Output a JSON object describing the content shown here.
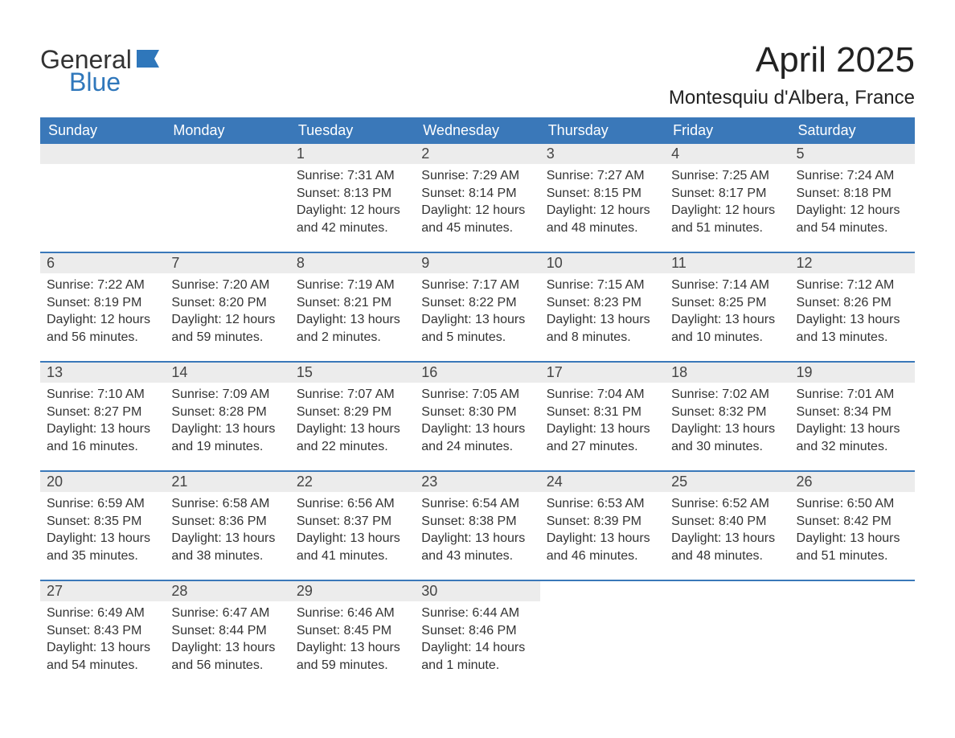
{
  "logo": {
    "text1": "General",
    "text2": "Blue"
  },
  "title": "April 2025",
  "location": "Montesquiu d'Albera, France",
  "colors": {
    "header_bg": "#3a78b9",
    "header_text": "#ffffff",
    "daynum_bg": "#ececec",
    "border_top": "#3a78b9",
    "body_text": "#333333",
    "logo_blue": "#2f77bb"
  },
  "day_headers": [
    "Sunday",
    "Monday",
    "Tuesday",
    "Wednesday",
    "Thursday",
    "Friday",
    "Saturday"
  ],
  "weeks": [
    [
      null,
      null,
      {
        "n": "1",
        "sunrise": "Sunrise: 7:31 AM",
        "sunset": "Sunset: 8:13 PM",
        "daylight1": "Daylight: 12 hours",
        "daylight2": "and 42 minutes."
      },
      {
        "n": "2",
        "sunrise": "Sunrise: 7:29 AM",
        "sunset": "Sunset: 8:14 PM",
        "daylight1": "Daylight: 12 hours",
        "daylight2": "and 45 minutes."
      },
      {
        "n": "3",
        "sunrise": "Sunrise: 7:27 AM",
        "sunset": "Sunset: 8:15 PM",
        "daylight1": "Daylight: 12 hours",
        "daylight2": "and 48 minutes."
      },
      {
        "n": "4",
        "sunrise": "Sunrise: 7:25 AM",
        "sunset": "Sunset: 8:17 PM",
        "daylight1": "Daylight: 12 hours",
        "daylight2": "and 51 minutes."
      },
      {
        "n": "5",
        "sunrise": "Sunrise: 7:24 AM",
        "sunset": "Sunset: 8:18 PM",
        "daylight1": "Daylight: 12 hours",
        "daylight2": "and 54 minutes."
      }
    ],
    [
      {
        "n": "6",
        "sunrise": "Sunrise: 7:22 AM",
        "sunset": "Sunset: 8:19 PM",
        "daylight1": "Daylight: 12 hours",
        "daylight2": "and 56 minutes."
      },
      {
        "n": "7",
        "sunrise": "Sunrise: 7:20 AM",
        "sunset": "Sunset: 8:20 PM",
        "daylight1": "Daylight: 12 hours",
        "daylight2": "and 59 minutes."
      },
      {
        "n": "8",
        "sunrise": "Sunrise: 7:19 AM",
        "sunset": "Sunset: 8:21 PM",
        "daylight1": "Daylight: 13 hours",
        "daylight2": "and 2 minutes."
      },
      {
        "n": "9",
        "sunrise": "Sunrise: 7:17 AM",
        "sunset": "Sunset: 8:22 PM",
        "daylight1": "Daylight: 13 hours",
        "daylight2": "and 5 minutes."
      },
      {
        "n": "10",
        "sunrise": "Sunrise: 7:15 AM",
        "sunset": "Sunset: 8:23 PM",
        "daylight1": "Daylight: 13 hours",
        "daylight2": "and 8 minutes."
      },
      {
        "n": "11",
        "sunrise": "Sunrise: 7:14 AM",
        "sunset": "Sunset: 8:25 PM",
        "daylight1": "Daylight: 13 hours",
        "daylight2": "and 10 minutes."
      },
      {
        "n": "12",
        "sunrise": "Sunrise: 7:12 AM",
        "sunset": "Sunset: 8:26 PM",
        "daylight1": "Daylight: 13 hours",
        "daylight2": "and 13 minutes."
      }
    ],
    [
      {
        "n": "13",
        "sunrise": "Sunrise: 7:10 AM",
        "sunset": "Sunset: 8:27 PM",
        "daylight1": "Daylight: 13 hours",
        "daylight2": "and 16 minutes."
      },
      {
        "n": "14",
        "sunrise": "Sunrise: 7:09 AM",
        "sunset": "Sunset: 8:28 PM",
        "daylight1": "Daylight: 13 hours",
        "daylight2": "and 19 minutes."
      },
      {
        "n": "15",
        "sunrise": "Sunrise: 7:07 AM",
        "sunset": "Sunset: 8:29 PM",
        "daylight1": "Daylight: 13 hours",
        "daylight2": "and 22 minutes."
      },
      {
        "n": "16",
        "sunrise": "Sunrise: 7:05 AM",
        "sunset": "Sunset: 8:30 PM",
        "daylight1": "Daylight: 13 hours",
        "daylight2": "and 24 minutes."
      },
      {
        "n": "17",
        "sunrise": "Sunrise: 7:04 AM",
        "sunset": "Sunset: 8:31 PM",
        "daylight1": "Daylight: 13 hours",
        "daylight2": "and 27 minutes."
      },
      {
        "n": "18",
        "sunrise": "Sunrise: 7:02 AM",
        "sunset": "Sunset: 8:32 PM",
        "daylight1": "Daylight: 13 hours",
        "daylight2": "and 30 minutes."
      },
      {
        "n": "19",
        "sunrise": "Sunrise: 7:01 AM",
        "sunset": "Sunset: 8:34 PM",
        "daylight1": "Daylight: 13 hours",
        "daylight2": "and 32 minutes."
      }
    ],
    [
      {
        "n": "20",
        "sunrise": "Sunrise: 6:59 AM",
        "sunset": "Sunset: 8:35 PM",
        "daylight1": "Daylight: 13 hours",
        "daylight2": "and 35 minutes."
      },
      {
        "n": "21",
        "sunrise": "Sunrise: 6:58 AM",
        "sunset": "Sunset: 8:36 PM",
        "daylight1": "Daylight: 13 hours",
        "daylight2": "and 38 minutes."
      },
      {
        "n": "22",
        "sunrise": "Sunrise: 6:56 AM",
        "sunset": "Sunset: 8:37 PM",
        "daylight1": "Daylight: 13 hours",
        "daylight2": "and 41 minutes."
      },
      {
        "n": "23",
        "sunrise": "Sunrise: 6:54 AM",
        "sunset": "Sunset: 8:38 PM",
        "daylight1": "Daylight: 13 hours",
        "daylight2": "and 43 minutes."
      },
      {
        "n": "24",
        "sunrise": "Sunrise: 6:53 AM",
        "sunset": "Sunset: 8:39 PM",
        "daylight1": "Daylight: 13 hours",
        "daylight2": "and 46 minutes."
      },
      {
        "n": "25",
        "sunrise": "Sunrise: 6:52 AM",
        "sunset": "Sunset: 8:40 PM",
        "daylight1": "Daylight: 13 hours",
        "daylight2": "and 48 minutes."
      },
      {
        "n": "26",
        "sunrise": "Sunrise: 6:50 AM",
        "sunset": "Sunset: 8:42 PM",
        "daylight1": "Daylight: 13 hours",
        "daylight2": "and 51 minutes."
      }
    ],
    [
      {
        "n": "27",
        "sunrise": "Sunrise: 6:49 AM",
        "sunset": "Sunset: 8:43 PM",
        "daylight1": "Daylight: 13 hours",
        "daylight2": "and 54 minutes."
      },
      {
        "n": "28",
        "sunrise": "Sunrise: 6:47 AM",
        "sunset": "Sunset: 8:44 PM",
        "daylight1": "Daylight: 13 hours",
        "daylight2": "and 56 minutes."
      },
      {
        "n": "29",
        "sunrise": "Sunrise: 6:46 AM",
        "sunset": "Sunset: 8:45 PM",
        "daylight1": "Daylight: 13 hours",
        "daylight2": "and 59 minutes."
      },
      {
        "n": "30",
        "sunrise": "Sunrise: 6:44 AM",
        "sunset": "Sunset: 8:46 PM",
        "daylight1": "Daylight: 14 hours",
        "daylight2": "and 1 minute."
      },
      null,
      null,
      null
    ]
  ]
}
